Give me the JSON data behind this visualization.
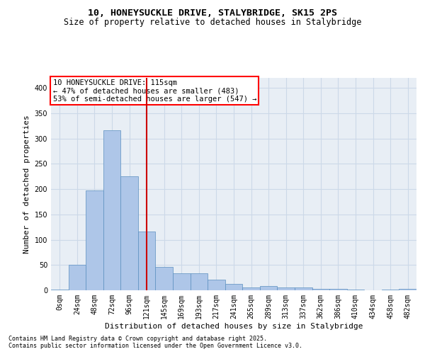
{
  "title_line1": "10, HONEYSUCKLE DRIVE, STALYBRIDGE, SK15 2PS",
  "title_line2": "Size of property relative to detached houses in Stalybridge",
  "xlabel": "Distribution of detached houses by size in Stalybridge",
  "ylabel": "Number of detached properties",
  "footnote1": "Contains HM Land Registry data © Crown copyright and database right 2025.",
  "footnote2": "Contains public sector information licensed under the Open Government Licence v3.0.",
  "annotation_line1": "10 HONEYSUCKLE DRIVE: 115sqm",
  "annotation_line2": "← 47% of detached houses are smaller (483)",
  "annotation_line3": "53% of semi-detached houses are larger (547) →",
  "bar_labels": [
    "0sqm",
    "24sqm",
    "48sqm",
    "72sqm",
    "96sqm",
    "121sqm",
    "145sqm",
    "169sqm",
    "193sqm",
    "217sqm",
    "241sqm",
    "265sqm",
    "289sqm",
    "313sqm",
    "337sqm",
    "362sqm",
    "386sqm",
    "410sqm",
    "434sqm",
    "458sqm",
    "482sqm"
  ],
  "bar_values": [
    2,
    51,
    197,
    317,
    226,
    116,
    46,
    34,
    34,
    21,
    12,
    5,
    9,
    6,
    5,
    3,
    3,
    1,
    0,
    1,
    3
  ],
  "bar_color": "#aec6e8",
  "bar_edge_color": "#5a8fc0",
  "vline_x": 5.0,
  "vline_color": "#cc0000",
  "ylim": [
    0,
    420
  ],
  "yticks": [
    0,
    50,
    100,
    150,
    200,
    250,
    300,
    350,
    400
  ],
  "grid_color": "#ccd9e8",
  "bg_color": "#e8eef5",
  "title_fontsize": 9.5,
  "subtitle_fontsize": 8.5,
  "annotation_fontsize": 7.5,
  "axis_label_fontsize": 8,
  "tick_fontsize": 7,
  "footnote_fontsize": 6
}
